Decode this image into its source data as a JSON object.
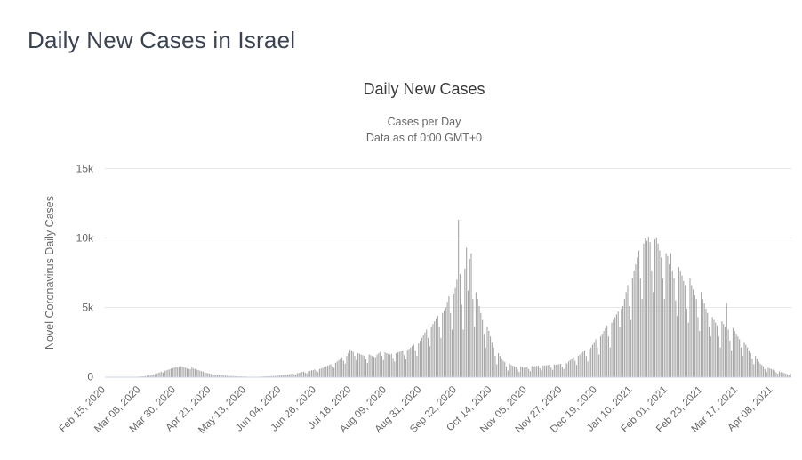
{
  "page": {
    "title": "Daily New Cases in Israel"
  },
  "chart": {
    "title": "Daily New Cases",
    "subtitle_line1": "Cases per Day",
    "subtitle_line2": "Data as of 0:00 GMT+0"
  },
  "chart_data": {
    "type": "bar",
    "title": "Daily New Cases",
    "subtitle": [
      "Cases per Day",
      "Data as of 0:00 GMT+0"
    ],
    "ylabel": "Novel Coronavirus Daily Cases",
    "xlabel": "",
    "ylim": [
      0,
      15000
    ],
    "grid": true,
    "legend": "none",
    "start_date": "Feb 15, 2020",
    "end_date": "Apr 19, 2021",
    "yticks": [
      {
        "value": 0,
        "label": "0"
      },
      {
        "value": 5000,
        "label": "5k"
      },
      {
        "value": 10000,
        "label": "10k"
      },
      {
        "value": 15000,
        "label": "15k"
      }
    ],
    "xticks": [
      {
        "day": 0,
        "label": "Feb 15, 2020"
      },
      {
        "day": 22,
        "label": "Mar 08, 2020"
      },
      {
        "day": 44,
        "label": "Mar 30, 2020"
      },
      {
        "day": 66,
        "label": "Apr 21, 2020"
      },
      {
        "day": 88,
        "label": "May 13, 2020"
      },
      {
        "day": 110,
        "label": "Jun 04, 2020"
      },
      {
        "day": 132,
        "label": "Jun 26, 2020"
      },
      {
        "day": 154,
        "label": "Jul 18, 2020"
      },
      {
        "day": 176,
        "label": "Aug 09, 2020"
      },
      {
        "day": 198,
        "label": "Aug 31, 2020"
      },
      {
        "day": 220,
        "label": "Sep 22, 2020"
      },
      {
        "day": 242,
        "label": "Oct 14, 2020"
      },
      {
        "day": 264,
        "label": "Nov 05, 2020"
      },
      {
        "day": 286,
        "label": "Nov 27, 2020"
      },
      {
        "day": 308,
        "label": "Dec 19, 2020"
      },
      {
        "day": 330,
        "label": "Jan 10, 2021"
      },
      {
        "day": 352,
        "label": "Feb 01, 2021"
      },
      {
        "day": 374,
        "label": "Feb 23, 2021"
      },
      {
        "day": 396,
        "label": "Mar 17, 2021"
      },
      {
        "day": 418,
        "label": "Apr 08, 2021"
      }
    ],
    "bar_color": "#a6a6a6",
    "gridline_color": "#e6e6e6",
    "axis_line_color": "#ccd6eb",
    "label_color": "#666666",
    "values": [
      0,
      0,
      0,
      0,
      0,
      0,
      1,
      0,
      0,
      2,
      1,
      2,
      3,
      4,
      5,
      4,
      6,
      8,
      10,
      12,
      15,
      20,
      25,
      30,
      40,
      55,
      70,
      90,
      110,
      140,
      170,
      200,
      240,
      280,
      320,
      360,
      300,
      420,
      460,
      500,
      540,
      580,
      620,
      660,
      700,
      680,
      720,
      765,
      730,
      690,
      650,
      600,
      570,
      540,
      700,
      600,
      560,
      520,
      480,
      440,
      400,
      360,
      320,
      290,
      260,
      230,
      200,
      180,
      160,
      140,
      130,
      120,
      110,
      100,
      90,
      80,
      70,
      60,
      55,
      50,
      45,
      40,
      35,
      30,
      28,
      25,
      22,
      20,
      18,
      16,
      15,
      14,
      12,
      10,
      10,
      12,
      15,
      18,
      20,
      25,
      30,
      35,
      40,
      45,
      50,
      55,
      60,
      70,
      80,
      90,
      100,
      110,
      125,
      140,
      160,
      180,
      200,
      220,
      180,
      150,
      250,
      280,
      310,
      340,
      370,
      300,
      250,
      400,
      430,
      460,
      490,
      520,
      420,
      350,
      560,
      600,
      640,
      700,
      750,
      800,
      850,
      900,
      750,
      650,
      1000,
      1100,
      1200,
      1300,
      1400,
      1150,
      950,
      1500,
      1700,
      1960,
      1900,
      1800,
      1500,
      1200,
      1700,
      1650,
      1600,
      1550,
      1500,
      1250,
      1000,
      1600,
      1550,
      1500,
      1450,
      1400,
      1600,
      1700,
      1800,
      1500,
      1200,
      1750,
      1700,
      1650,
      1600,
      1650,
      1350,
      1100,
      1700,
      1750,
      1800,
      1850,
      1900,
      1550,
      1250,
      1950,
      2000,
      2100,
      2200,
      2300,
      1900,
      1500,
      2400,
      2600,
      2800,
      3000,
      3200,
      3400,
      2800,
      2200,
      3600,
      3800,
      4000,
      4200,
      4400,
      3600,
      2800,
      4600,
      4800,
      5000,
      5400,
      5800,
      4600,
      3400,
      6000,
      6400,
      7000,
      11316,
      7400,
      5200,
      3400,
      7800,
      9300,
      6200,
      8500,
      8900,
      5600,
      3600,
      6100,
      5600,
      5100,
      4600,
      4100,
      3100,
      2100,
      3600,
      3300,
      2900,
      2500,
      2100,
      1500,
      900,
      1700,
      1500,
      1300,
      1150,
      1050,
      750,
      450,
      950,
      850,
      800,
      750,
      700,
      550,
      350,
      750,
      700,
      650,
      680,
      700,
      550,
      400,
      780,
      740,
      760,
      780,
      800,
      620,
      460,
      820,
      800,
      820,
      840,
      860,
      660,
      500,
      880,
      860,
      880,
      900,
      930,
      720,
      560,
      980,
      960,
      1100,
      1200,
      1300,
      1400,
      1150,
      850,
      1500,
      1600,
      1700,
      1800,
      1900,
      1500,
      1100,
      2000,
      2100,
      2300,
      2500,
      2700,
      2100,
      1600,
      2900,
      3100,
      3300,
      3500,
      3700,
      2900,
      2100,
      3900,
      4100,
      4300,
      4500,
      4700,
      3600,
      4900,
      5100,
      5600,
      6100,
      6600,
      5100,
      4100,
      7100,
      7600,
      8100,
      8600,
      9100,
      7100,
      5600,
      9600,
      10000,
      9800,
      10100,
      9700,
      7600,
      6100,
      9900,
      10050,
      9600,
      9100,
      8600,
      7100,
      5600,
      8900,
      8700,
      8100,
      8900,
      7600,
      7100,
      5500,
      4400,
      7900,
      7600,
      7300,
      6900,
      6600,
      4900,
      3900,
      7100,
      6600,
      6300,
      5900,
      5600,
      4300,
      3300,
      6100,
      5600,
      5300,
      4900,
      4600,
      3600,
      2900,
      4300,
      4100,
      3900,
      3700,
      2900,
      2100,
      4000,
      3800,
      3600,
      5300,
      3400,
      2600,
      1900,
      3500,
      3300,
      3100,
      2900,
      2700,
      2100,
      1500,
      2500,
      2300,
      2100,
      1900,
      1700,
      1300,
      900,
      1500,
      1300,
      1100,
      950,
      850,
      750,
      550,
      350,
      650,
      600,
      550,
      500,
      450,
      320,
      220,
      380,
      330,
      300,
      270,
      240,
      170,
      120,
      210
    ]
  }
}
